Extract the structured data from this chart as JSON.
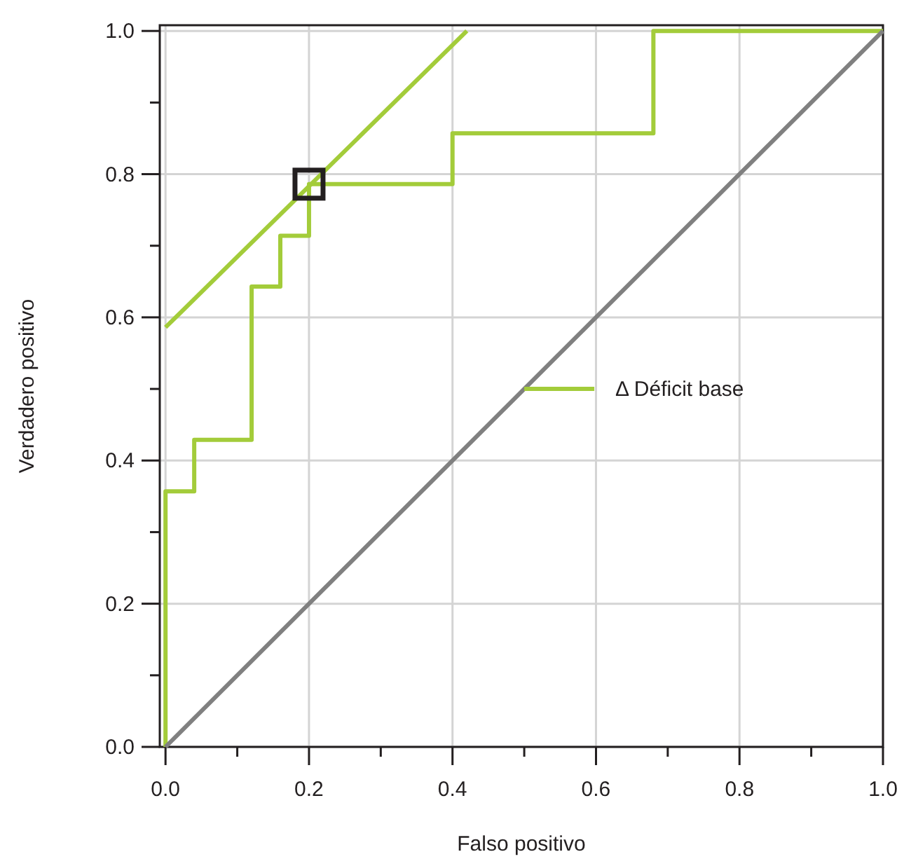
{
  "chart_data": {
    "type": "line",
    "xlabel": "Falso positivo",
    "ylabel": "Verdadero positivo",
    "xlim": [
      -0.008,
      1.0
    ],
    "ylim": [
      0,
      1.008
    ],
    "xticks": [
      {
        "value": 0,
        "label": "0.0"
      },
      {
        "value": 0.1,
        "label": null
      },
      {
        "value": 0.2,
        "label": "0.2"
      },
      {
        "value": 0.3,
        "label": null
      },
      {
        "value": 0.4,
        "label": "0.4"
      },
      {
        "value": 0.5,
        "label": null
      },
      {
        "value": 0.6,
        "label": "0.6"
      },
      {
        "value": 0.7,
        "label": null
      },
      {
        "value": 0.8,
        "label": "0.8"
      },
      {
        "value": 0.9,
        "label": null
      },
      {
        "value": 1,
        "label": "1.0"
      }
    ],
    "yticks": [
      {
        "value": 0,
        "label": "0.0"
      },
      {
        "value": 0.1,
        "label": null
      },
      {
        "value": 0.2,
        "label": "0.2"
      },
      {
        "value": 0.3,
        "label": null
      },
      {
        "value": 0.4,
        "label": "0.4"
      },
      {
        "value": 0.5,
        "label": null
      },
      {
        "value": 0.6,
        "label": "0.6"
      },
      {
        "value": 0.7,
        "label": null
      },
      {
        "value": 0.8,
        "label": "0.8"
      },
      {
        "value": 0.9,
        "label": null
      },
      {
        "value": 1,
        "label": "1.0"
      }
    ],
    "grid": true,
    "legend": "right",
    "series": [
      {
        "name": "Δ Déficit base",
        "type": "step",
        "color": "#a3cc3a",
        "x": [
          0,
          0,
          0.04,
          0.12,
          0.16,
          0.2,
          0.4,
          0.68,
          1
        ],
        "values": [
          0,
          0.357,
          0.429,
          0.643,
          0.714,
          0.786,
          0.857,
          1,
          1
        ]
      },
      {
        "color": "#a3cc3a",
        "x": [
          0,
          0.42
        ],
        "values": [
          0.586,
          1
        ]
      },
      {
        "color": "#808080",
        "x": [
          0,
          1
        ],
        "values": [
          0,
          1
        ]
      },
      {
        "type": "scatter",
        "marker": "square",
        "color": "#231f20",
        "x": [
          0.2
        ],
        "values": [
          0.786
        ]
      }
    ]
  }
}
